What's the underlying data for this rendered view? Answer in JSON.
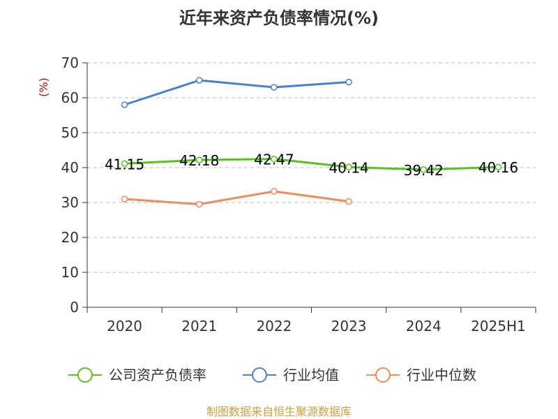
{
  "chart_data": {
    "type": "line",
    "title": "近年来资产负债率情况(%)",
    "ylabel": "(%)",
    "xlabel": "",
    "ylim": [
      0,
      70
    ],
    "yticks": [
      0,
      10,
      20,
      30,
      40,
      50,
      60,
      70
    ],
    "categories": [
      "2020",
      "2021",
      "2022",
      "2023",
      "2024",
      "2025H1"
    ],
    "grid": "horizontal dashed",
    "legend_position": "bottom",
    "series": [
      {
        "name": "公司资产负债率",
        "color": "#52c41a",
        "values": [
          41.15,
          42.18,
          42.47,
          40.14,
          39.42,
          40.16
        ],
        "labels": [
          "41.15",
          "42.18",
          "42.47",
          "40.14",
          "39.42",
          "40.16"
        ],
        "show_labels": true
      },
      {
        "name": "行业均值",
        "color": "#4a7fd4",
        "values": [
          58.0,
          65.0,
          63.0,
          64.5,
          null,
          null
        ],
        "show_labels": false
      },
      {
        "name": "行业中位数",
        "color": "#f08a5d",
        "values": [
          31.0,
          29.5,
          33.2,
          30.3,
          null,
          null
        ],
        "show_labels": false
      }
    ],
    "source": "制图数据来自恒生聚源数据库"
  }
}
